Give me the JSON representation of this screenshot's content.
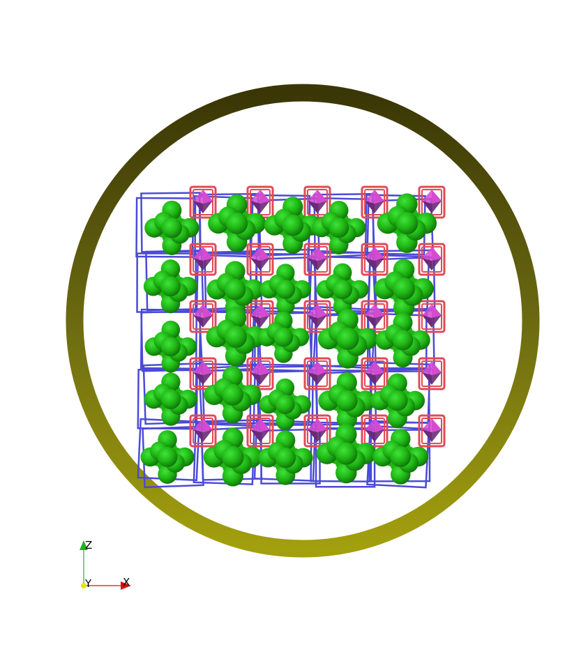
{
  "scene": {
    "background": "#ffffff",
    "ring": {
      "color_dark": "#3a3606",
      "color_mid": "#6b6a10",
      "color_light": "#a3a00e"
    },
    "lattice": {
      "columns": 5,
      "rows": 5,
      "jack_color": "#1fb514",
      "jack_highlight": "#3fe33a",
      "jack_shadow": "#0f6e0a",
      "cell_outline_color": "#4a4ad8",
      "octahedron_color": "#d64ad0",
      "octahedron_shadow": "#6a2a78",
      "octahedron_cage_color": "#e04a55"
    }
  },
  "orientation_axes": {
    "labels": {
      "z": "Z",
      "y": "Y",
      "x": "X"
    },
    "colors": {
      "z": "#1db31d",
      "y": "#e6e600",
      "x": "#d11313"
    }
  }
}
